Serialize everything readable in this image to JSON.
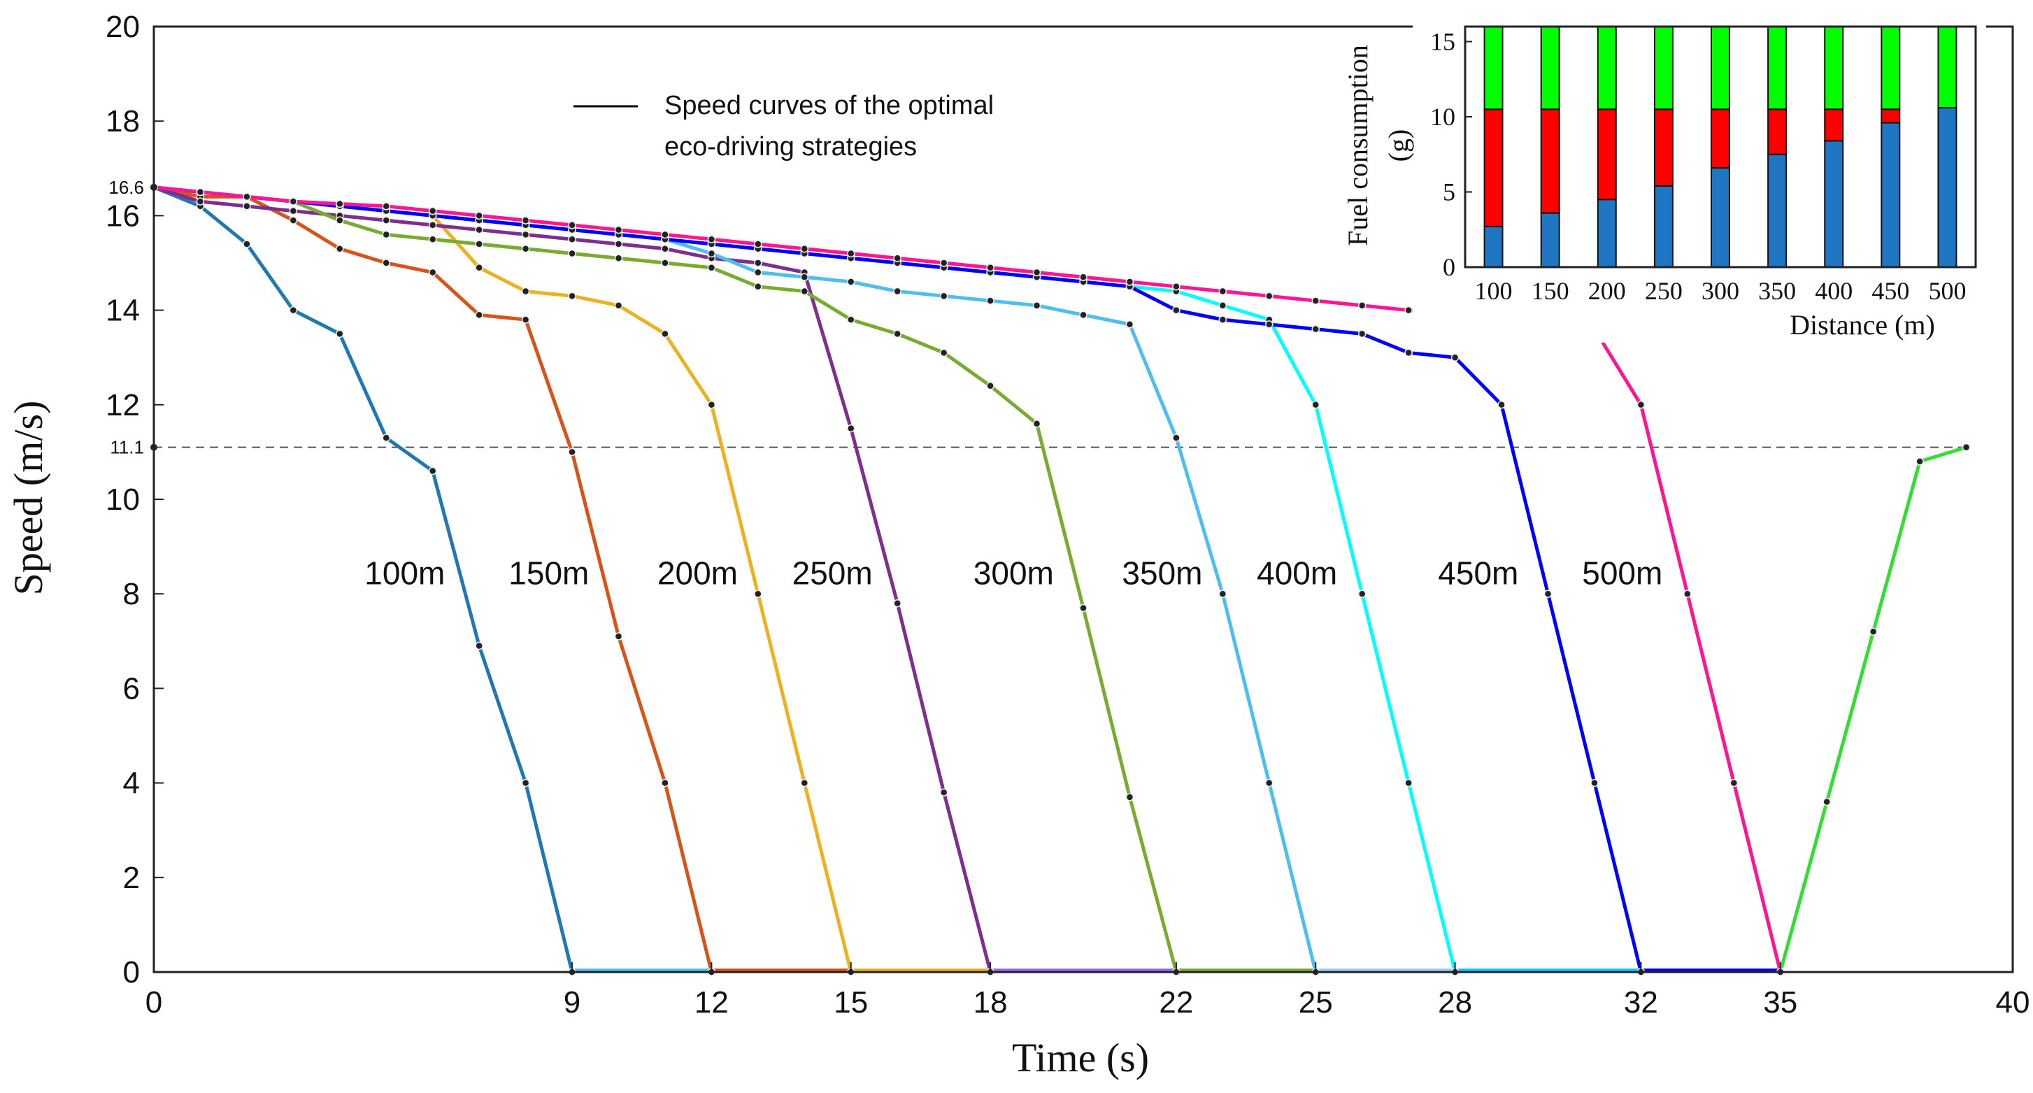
{
  "chart_data": [
    {
      "type": "line",
      "title": "",
      "xlabel": "Time (s)",
      "ylabel": "Speed (m/s)",
      "xlim": [
        0,
        40
      ],
      "ylim": [
        0,
        20
      ],
      "xticks": [
        "0",
        "9",
        "12",
        "15",
        "18",
        "22",
        "25",
        "28",
        "32",
        "35",
        "40"
      ],
      "xtick_values": [
        0,
        9,
        12,
        15,
        18,
        22,
        25,
        28,
        32,
        35,
        40
      ],
      "yticks": [
        "0",
        "2",
        "4",
        "6",
        "8",
        "10",
        "12",
        "14",
        "16",
        "18",
        "20"
      ],
      "extra_yticks": [
        {
          "value": 16.6,
          "label": "16.6"
        },
        {
          "value": 11.1,
          "label": "11.1"
        }
      ],
      "reference_line": {
        "y": 11.1,
        "style": "dashed"
      },
      "legend": {
        "text_line1": "Speed curves of the optimal",
        "text_line2": "eco-driving strategies",
        "color": "#000000"
      },
      "grid": false,
      "series": [
        {
          "name": "100m",
          "color": "#1f77b4",
          "x": [
            0,
            1,
            2,
            3,
            4,
            5,
            6,
            7,
            8,
            9
          ],
          "y": [
            16.6,
            16.2,
            15.4,
            14.0,
            13.5,
            11.3,
            10.6,
            6.9,
            4.0,
            0
          ]
        },
        {
          "name": "150m",
          "color": "#d95319",
          "x": [
            0,
            1,
            2,
            3,
            4,
            5,
            6,
            7,
            8,
            9,
            10,
            11,
            12
          ],
          "y": [
            16.6,
            16.4,
            16.4,
            15.9,
            15.3,
            15.0,
            14.8,
            13.9,
            13.8,
            11.0,
            7.1,
            4.0,
            0
          ]
        },
        {
          "name": "200m",
          "color": "#edb120",
          "x": [
            0,
            1,
            2,
            3,
            4,
            5,
            6,
            7,
            8,
            9,
            10,
            11,
            12,
            13,
            14,
            15
          ],
          "y": [
            16.6,
            16.5,
            16.4,
            16.3,
            16.2,
            16.1,
            16.0,
            14.9,
            14.4,
            14.3,
            14.1,
            13.5,
            12.0,
            8.0,
            4.0,
            0
          ]
        },
        {
          "name": "250m",
          "color": "#7e2f8e",
          "x": [
            0,
            1,
            2,
            3,
            4,
            5,
            6,
            7,
            8,
            9,
            10,
            11,
            12,
            13,
            14,
            15,
            16,
            17,
            18
          ],
          "y": [
            16.6,
            16.3,
            16.2,
            16.1,
            16.0,
            15.9,
            15.8,
            15.7,
            15.6,
            15.5,
            15.4,
            15.3,
            15.1,
            15.0,
            14.8,
            11.5,
            7.8,
            3.8,
            0
          ]
        },
        {
          "name": "300m",
          "color": "#77ac30",
          "x": [
            0,
            1,
            2,
            3,
            4,
            5,
            6,
            7,
            8,
            9,
            10,
            11,
            12,
            13,
            14,
            15,
            16,
            17,
            18,
            19,
            20,
            21,
            22
          ],
          "y": [
            16.6,
            16.5,
            16.4,
            16.3,
            15.9,
            15.6,
            15.5,
            15.4,
            15.3,
            15.2,
            15.1,
            15.0,
            14.9,
            14.5,
            14.4,
            13.8,
            13.5,
            13.1,
            12.4,
            11.6,
            7.7,
            3.7,
            0
          ]
        },
        {
          "name": "350m",
          "color": "#4dbeee",
          "x": [
            0,
            1,
            2,
            3,
            4,
            5,
            6,
            7,
            8,
            9,
            10,
            11,
            12,
            13,
            14,
            15,
            16,
            17,
            18,
            19,
            20,
            21,
            22,
            23,
            24,
            25
          ],
          "y": [
            16.6,
            16.5,
            16.4,
            16.3,
            16.2,
            16.1,
            16.0,
            15.9,
            15.8,
            15.7,
            15.6,
            15.5,
            15.2,
            14.8,
            14.7,
            14.6,
            14.4,
            14.3,
            14.2,
            14.1,
            13.9,
            13.7,
            11.3,
            8.0,
            4.0,
            0
          ]
        },
        {
          "name": "400m",
          "color": "#00ffff",
          "x": [
            0,
            1,
            2,
            3,
            4,
            5,
            6,
            7,
            8,
            9,
            10,
            11,
            12,
            13,
            14,
            15,
            16,
            17,
            18,
            19,
            20,
            21,
            22,
            23,
            24,
            25,
            26,
            27,
            28
          ],
          "y": [
            16.6,
            16.5,
            16.4,
            16.3,
            16.2,
            16.1,
            16.0,
            15.9,
            15.8,
            15.7,
            15.6,
            15.5,
            15.4,
            15.3,
            15.2,
            15.1,
            15.0,
            14.9,
            14.8,
            14.7,
            14.6,
            14.5,
            14.4,
            14.1,
            13.8,
            12.0,
            8.0,
            4.0,
            0
          ]
        },
        {
          "name": "450m",
          "color": "#0000ff",
          "x": [
            0,
            1,
            2,
            3,
            4,
            5,
            6,
            7,
            8,
            9,
            10,
            11,
            12,
            13,
            14,
            15,
            16,
            17,
            18,
            19,
            20,
            21,
            22,
            23,
            24,
            25,
            26,
            27,
            28,
            29,
            30,
            31,
            32
          ],
          "y": [
            16.6,
            16.5,
            16.4,
            16.3,
            16.2,
            16.1,
            16.0,
            15.9,
            15.8,
            15.7,
            15.6,
            15.5,
            15.4,
            15.3,
            15.2,
            15.1,
            15.0,
            14.9,
            14.8,
            14.7,
            14.6,
            14.5,
            14.0,
            13.8,
            13.7,
            13.6,
            13.5,
            13.1,
            13.0,
            12.0,
            8.0,
            4.0,
            0
          ]
        },
        {
          "name": "500m",
          "color": "#ff1493",
          "x": [
            0,
            1,
            2,
            3,
            4,
            5,
            6,
            7,
            8,
            9,
            10,
            11,
            12,
            13,
            14,
            15,
            16,
            17,
            18,
            19,
            20,
            21,
            22,
            23,
            24,
            25,
            26,
            27,
            28,
            29,
            30,
            31,
            32,
            33,
            34,
            35
          ],
          "y": [
            16.6,
            16.5,
            16.4,
            16.3,
            16.25,
            16.2,
            16.1,
            16.0,
            15.9,
            15.8,
            15.7,
            15.6,
            15.5,
            15.4,
            15.3,
            15.2,
            15.1,
            15.0,
            14.9,
            14.8,
            14.7,
            14.6,
            14.5,
            14.4,
            14.3,
            14.2,
            14.1,
            14.0,
            13.9,
            13.8,
            13.7,
            13.6,
            12.0,
            8.0,
            4.0,
            0
          ]
        },
        {
          "name": "",
          "color": "#33dd33",
          "x": [
            35,
            36,
            37,
            38,
            39
          ],
          "y": [
            0,
            3.6,
            7.2,
            10.8,
            11.1
          ]
        }
      ],
      "stop_segments": [
        {
          "x_start": 9,
          "x_end": 12,
          "color": "#4dbeee"
        },
        {
          "x_start": 12,
          "x_end": 15,
          "color": "#d95319"
        },
        {
          "x_start": 15,
          "x_end": 18,
          "color": "#edb120"
        },
        {
          "x_start": 18,
          "x_end": 22,
          "color": "#9966ff"
        },
        {
          "x_start": 22,
          "x_end": 25,
          "color": "#77ac30"
        },
        {
          "x_start": 25,
          "x_end": 28,
          "color": "#99ccff"
        },
        {
          "x_start": 28,
          "x_end": 32,
          "color": "#00ccff"
        },
        {
          "x_start": 32,
          "x_end": 35,
          "color": "#0000ff"
        }
      ],
      "curve_labels": [
        {
          "text": "100m",
          "x": 5.4,
          "y": 8.2
        },
        {
          "text": "150m",
          "x": 8.5,
          "y": 8.2
        },
        {
          "text": "200m",
          "x": 11.7,
          "y": 8.2
        },
        {
          "text": "250m",
          "x": 14.6,
          "y": 8.2
        },
        {
          "text": "300m",
          "x": 18.5,
          "y": 8.2
        },
        {
          "text": "350m",
          "x": 21.7,
          "y": 8.2
        },
        {
          "text": "400m",
          "x": 24.6,
          "y": 8.2
        },
        {
          "text": "450m",
          "x": 28.5,
          "y": 8.2
        },
        {
          "text": "500m",
          "x": 31.6,
          "y": 8.2
        }
      ]
    },
    {
      "type": "bar",
      "stacked": true,
      "title": "",
      "xlabel": "Distance (m)",
      "ylabel": "Fuel consumption (g)",
      "ylim": [
        0,
        16
      ],
      "yticks": [
        "0",
        "5",
        "10",
        "15"
      ],
      "categories": [
        "100",
        "150",
        "200",
        "250",
        "300",
        "350",
        "400",
        "450",
        "500"
      ],
      "series": [
        {
          "name": "",
          "color": "#1f77c4",
          "values": [
            2.7,
            3.6,
            4.5,
            5.4,
            6.6,
            7.5,
            8.4,
            9.6,
            10.6
          ]
        },
        {
          "name": "",
          "color": "#ff0000",
          "values": [
            7.8,
            6.9,
            6.0,
            5.1,
            3.9,
            3.0,
            2.1,
            0.9,
            0
          ]
        },
        {
          "name": "",
          "color": "#00ff00",
          "values": [
            5.5,
            5.5,
            5.5,
            5.5,
            5.5,
            5.5,
            5.5,
            5.5,
            5.4
          ]
        }
      ]
    }
  ]
}
